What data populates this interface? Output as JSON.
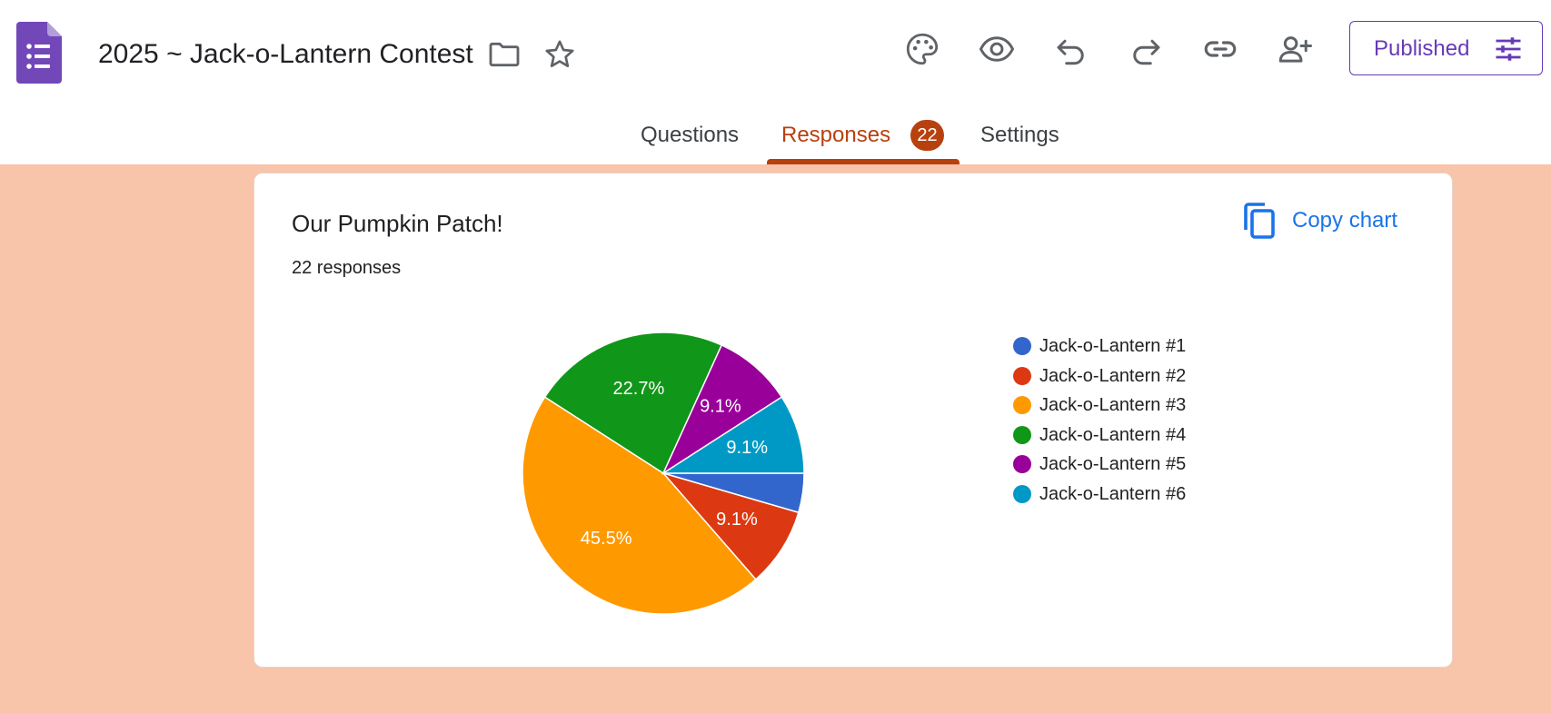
{
  "header": {
    "title": "2025 ~ Jack-o-Lantern Contest",
    "publish_label": "Published",
    "tools": [
      "palette-icon",
      "eye-icon",
      "undo-icon",
      "redo-icon",
      "link-icon",
      "add-person-icon"
    ]
  },
  "tabs": [
    {
      "label": "Questions",
      "active": false
    },
    {
      "label": "Responses",
      "active": true,
      "badge": "22"
    },
    {
      "label": "Settings",
      "active": false
    }
  ],
  "colors": {
    "accent": "#b7410e",
    "brand": "#673ab7",
    "background": "#f8c4aa",
    "link": "#1a73e8"
  },
  "card": {
    "question_title": "Our Pumpkin Patch!",
    "response_count": "22 responses",
    "copy_chart_label": "Copy chart"
  },
  "chart_data": {
    "type": "pie",
    "categories": [
      "Jack-o-Lantern #1",
      "Jack-o-Lantern #2",
      "Jack-o-Lantern #3",
      "Jack-o-Lantern #4",
      "Jack-o-Lantern #5",
      "Jack-o-Lantern #6"
    ],
    "values": [
      4.5,
      9.1,
      45.5,
      22.7,
      9.1,
      9.1
    ],
    "data_labels": [
      "",
      "9.1%",
      "45.5%",
      "22.7%",
      "9.1%",
      "9.1%"
    ],
    "colors": [
      "#3366cc",
      "#dc3912",
      "#ff9900",
      "#109618",
      "#990099",
      "#0099c6"
    ],
    "legend_position": "right"
  }
}
